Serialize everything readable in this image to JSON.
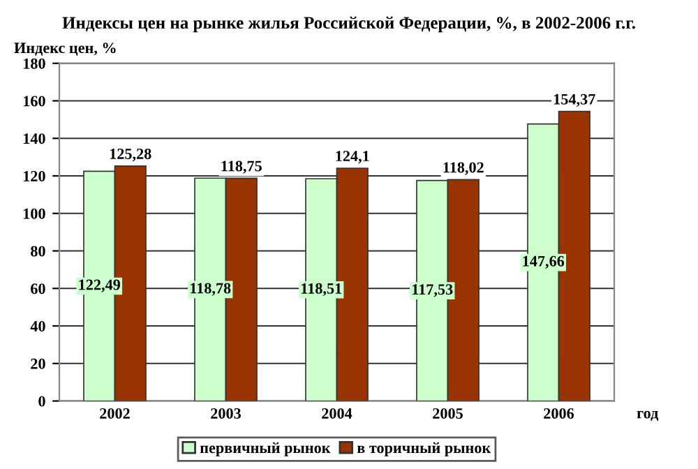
{
  "chart_data": {
    "type": "bar",
    "title": "Индексы цен на рынке жилья Российской Федерации, %, в 2002-2006 г.г.",
    "ylabel": "Индекс цен, %",
    "xlabel": "год",
    "categories": [
      "2002",
      "2003",
      "2004",
      "2005",
      "2006"
    ],
    "series": [
      {
        "name": "первичный рынок",
        "color": "#ccffcc",
        "values": [
          122.49,
          118.78,
          118.51,
          117.53,
          147.66
        ],
        "value_labels": [
          "122,49",
          "118,78",
          "118,51",
          "117,53",
          "147,66"
        ]
      },
      {
        "name": "в торичный рынок",
        "color": "#993300",
        "values": [
          125.28,
          118.75,
          124.1,
          118.02,
          154.37
        ],
        "value_labels": [
          "125,28",
          "118,75",
          "124,1",
          "118,02",
          "154,37"
        ]
      }
    ],
    "ylim": [
      0,
      180
    ],
    "yticks": [
      0,
      20,
      40,
      60,
      80,
      100,
      120,
      140,
      160,
      180
    ],
    "grid": "y",
    "legend": "bottom"
  }
}
